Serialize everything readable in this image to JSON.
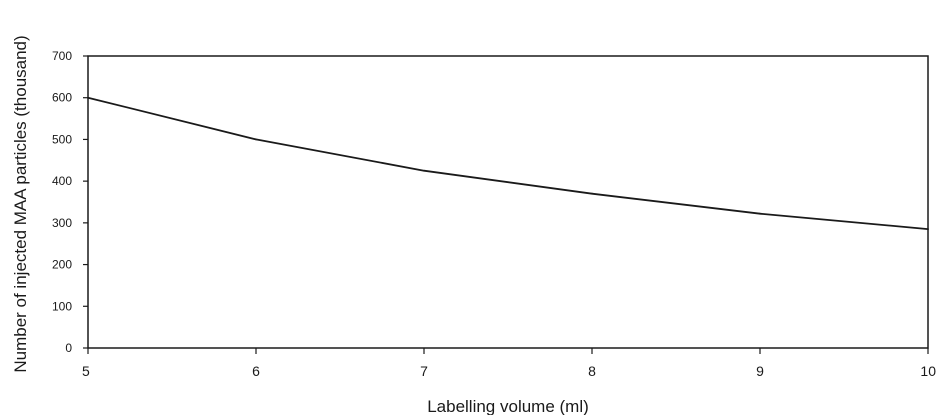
{
  "chart_data": {
    "type": "line",
    "title": "",
    "xlabel": "Labelling volume (ml)",
    "ylabel": "Number of injected MAA particles (thousand)",
    "xlim": [
      5,
      10
    ],
    "ylim": [
      0,
      700
    ],
    "x_ticks": [
      "5",
      "6",
      "7",
      "8",
      "9",
      "10"
    ],
    "y_ticks": [
      "0",
      "100",
      "200",
      "300",
      "400",
      "500",
      "600",
      "700"
    ],
    "grid": false,
    "legend": "none",
    "line_color": "#1a1a1a",
    "series": [
      {
        "x": [
          5,
          6,
          7,
          8,
          9,
          10
        ],
        "values": [
          600,
          500,
          425,
          370,
          322,
          285
        ]
      }
    ]
  }
}
